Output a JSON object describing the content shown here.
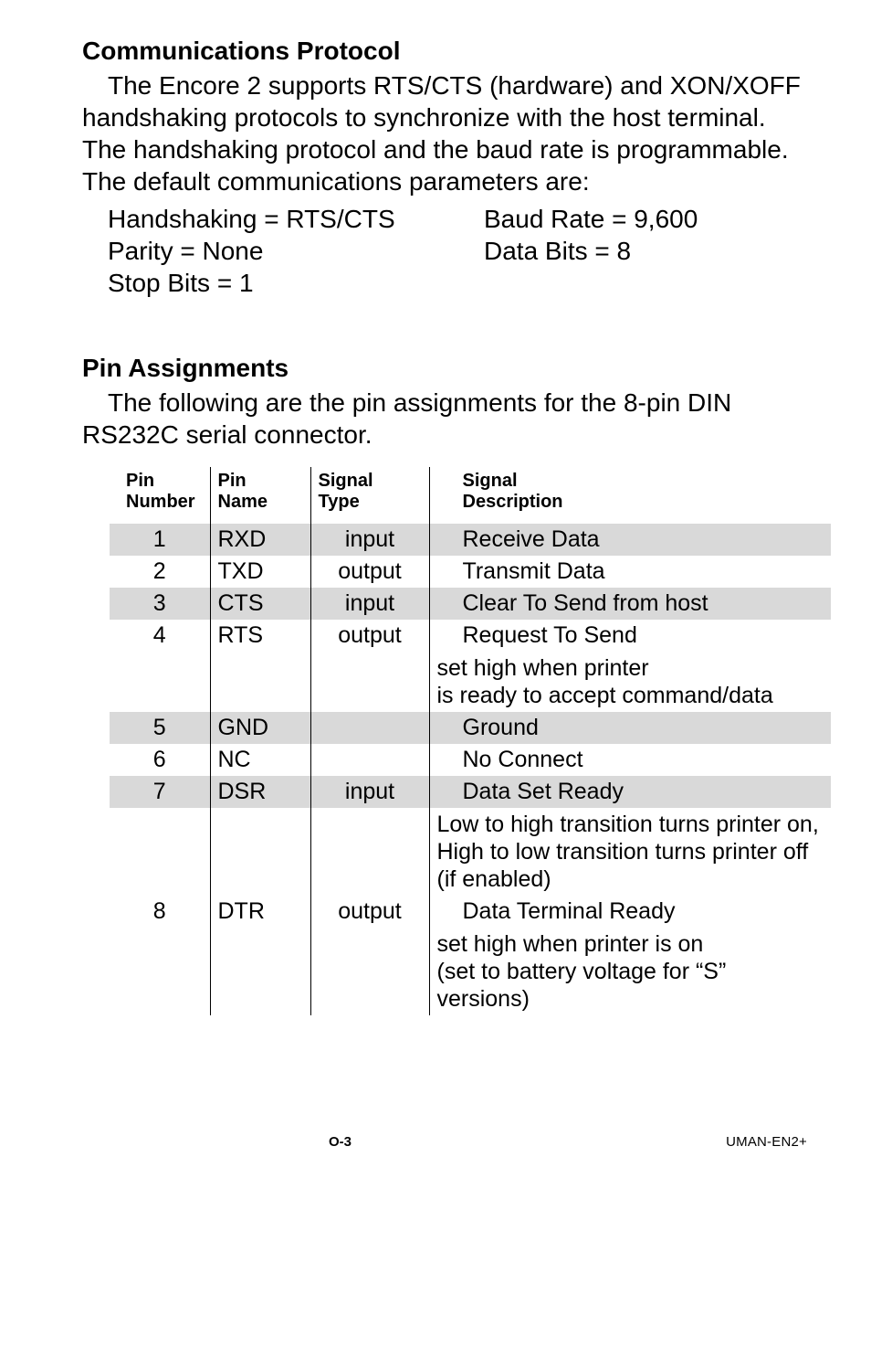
{
  "section1": {
    "title": "Communications Protocol",
    "para": "The Encore 2 supports RTS/CTS (hardware) and XON/XOFF handshaking protocols to synchronize with the host terminal.  The handshaking protocol and the baud rate is programmable.  The default communications parameters are:",
    "rows": [
      {
        "left": "Handshaking = RTS/CTS",
        "right": "Baud Rate = 9,600"
      },
      {
        "left": "Parity = None",
        "right": "Data Bits = 8"
      },
      {
        "left": "Stop Bits = 1",
        "right": ""
      }
    ]
  },
  "section2": {
    "title": "Pin Assignments",
    "para": "The following are the pin assignments for the 8-pin DIN RS232C serial connector."
  },
  "table": {
    "headers": {
      "num1": "Pin",
      "num2": "Number",
      "name1": "Pin",
      "name2": "Name",
      "type1": "Signal",
      "type2": "Type",
      "desc1": "Signal",
      "desc2": "Description"
    },
    "rows": [
      {
        "num": "1",
        "name": "RXD",
        "type": "input",
        "desc": "Receive Data",
        "shaded": true
      },
      {
        "num": "2",
        "name": "TXD",
        "type": "output",
        "desc": "Transmit Data"
      },
      {
        "num": "3",
        "name": "CTS",
        "type": "input",
        "desc": "Clear To Send from host",
        "shaded": true
      },
      {
        "num": "4",
        "name": "RTS",
        "type": "output",
        "desc": "Request To Send",
        "sub": "set high when printer\nis ready to accept command/data"
      },
      {
        "num": "5",
        "name": "GND",
        "type": "",
        "desc": "Ground",
        "shaded": true
      },
      {
        "num": "6",
        "name": "NC",
        "type": "",
        "desc": "No Connect"
      },
      {
        "num": "7",
        "name": "DSR",
        "type": "input",
        "desc": "Data Set Ready",
        "shaded": true,
        "sub": "Low to high transition turns printer on, High to low transition turns printer off\n(if enabled)"
      },
      {
        "num": "8",
        "name": "DTR",
        "type": "output",
        "desc": "Data Terminal Ready",
        "sub": "set high when printer is on\n(set to battery  voltage for “S” versions)"
      }
    ]
  },
  "footer": {
    "page": "O-3",
    "doc": "UMAN-EN2+"
  }
}
